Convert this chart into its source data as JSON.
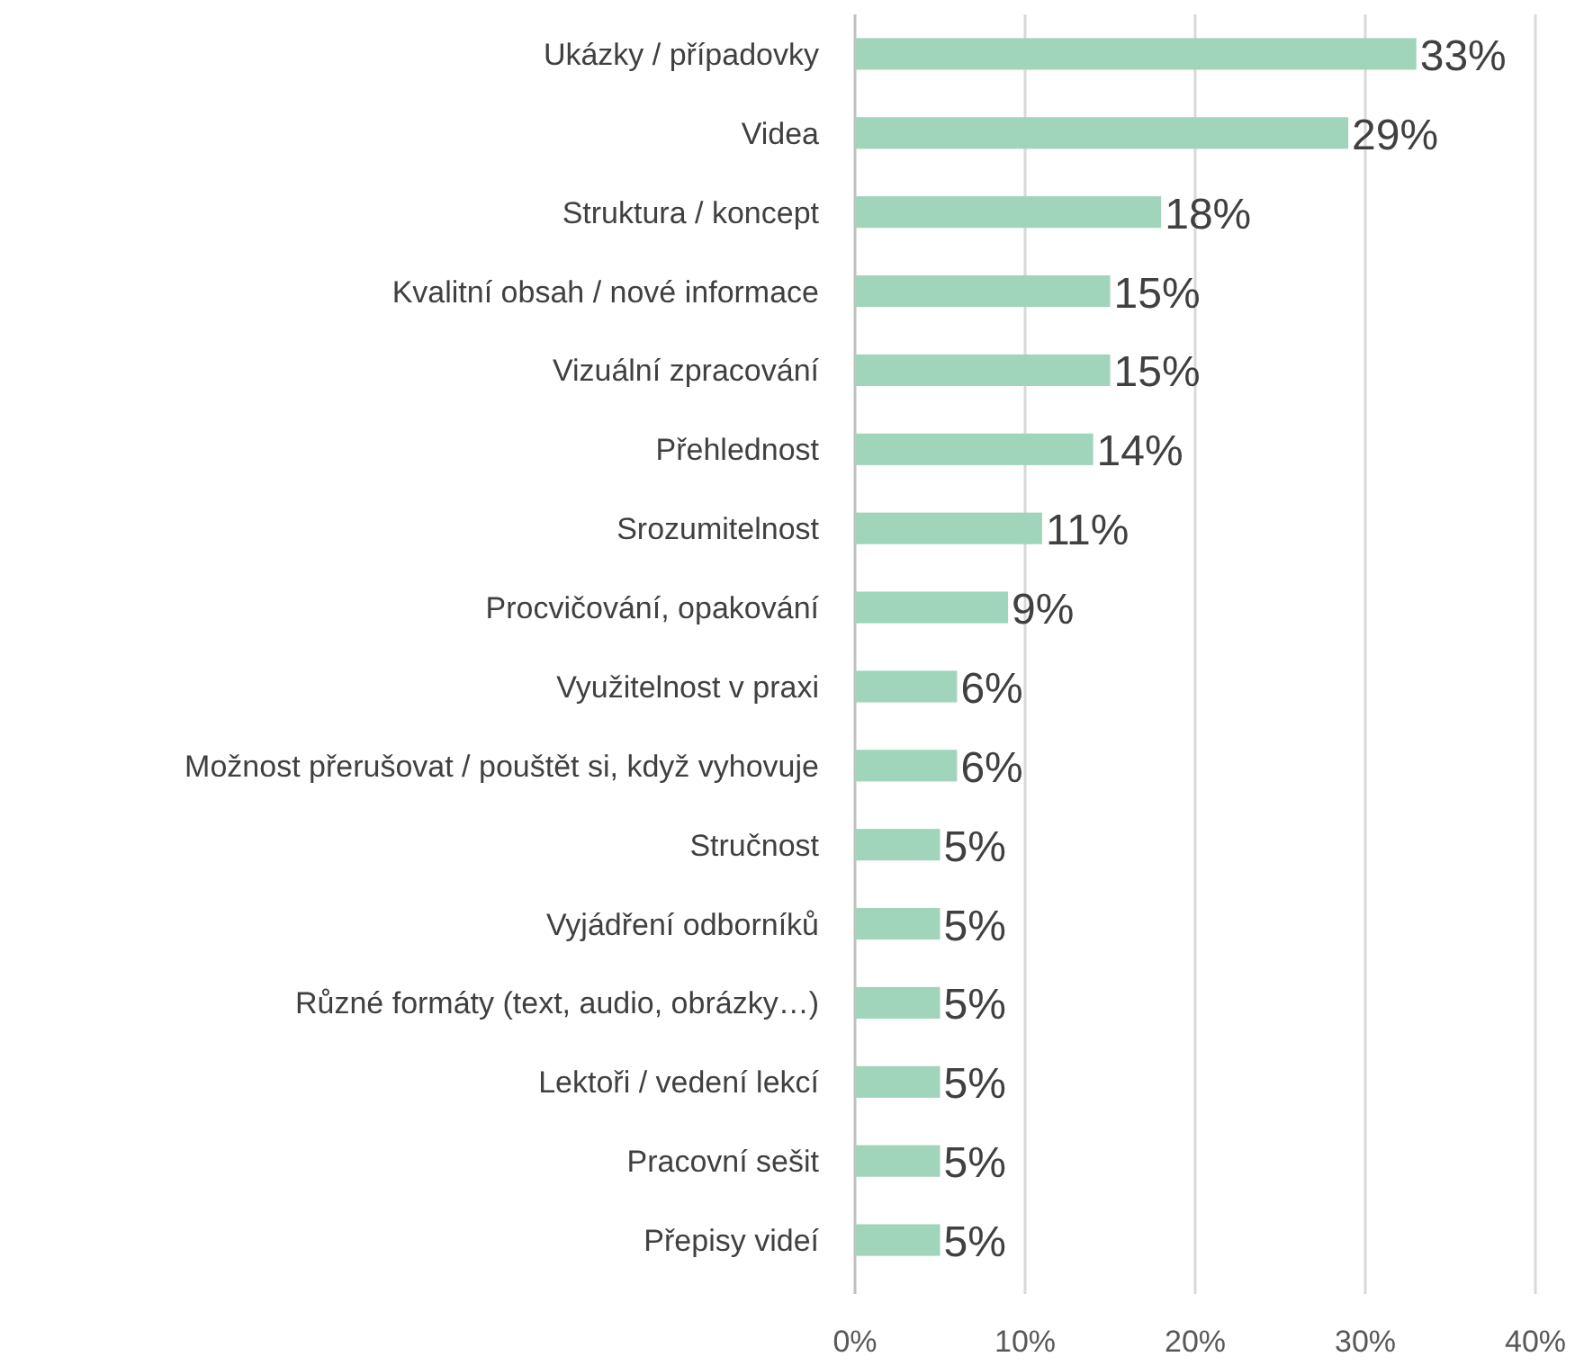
{
  "chart_data": {
    "type": "bar",
    "orientation": "horizontal",
    "categories": [
      "Ukázky / případovky",
      "Videa",
      "Struktura / koncept",
      "Kvalitní obsah / nové informace",
      "Vizuální zpracování",
      "Přehlednost",
      "Srozumitelnost",
      "Procvičování, opakování",
      "Využitelnost v praxi",
      "Možnost přerušovat / pouštět si, když vyhovuje",
      "Stručnost",
      "Vyjádření odborníků",
      "Různé formáty (text, audio, obrázky…)",
      "Lektoři / vedení lekcí",
      "Pracovní sešit",
      "Přepisy videí"
    ],
    "values": [
      33,
      29,
      18,
      15,
      15,
      14,
      11,
      9,
      6,
      6,
      5,
      5,
      5,
      5,
      5,
      5
    ],
    "value_labels": [
      "33%",
      "29%",
      "18%",
      "15%",
      "15%",
      "14%",
      "11%",
      "9%",
      "6%",
      "6%",
      "5%",
      "5%",
      "5%",
      "5%",
      "5%",
      "5%"
    ],
    "color": "#a0d5bb",
    "xlim": [
      0,
      40
    ],
    "xticks": [
      {
        "value": 0,
        "label": "0%"
      },
      {
        "value": 10,
        "label": "10%"
      },
      {
        "value": 20,
        "label": "20%"
      },
      {
        "value": 30,
        "label": "30%"
      },
      {
        "value": 40,
        "label": "40%"
      }
    ],
    "grid": "x"
  }
}
